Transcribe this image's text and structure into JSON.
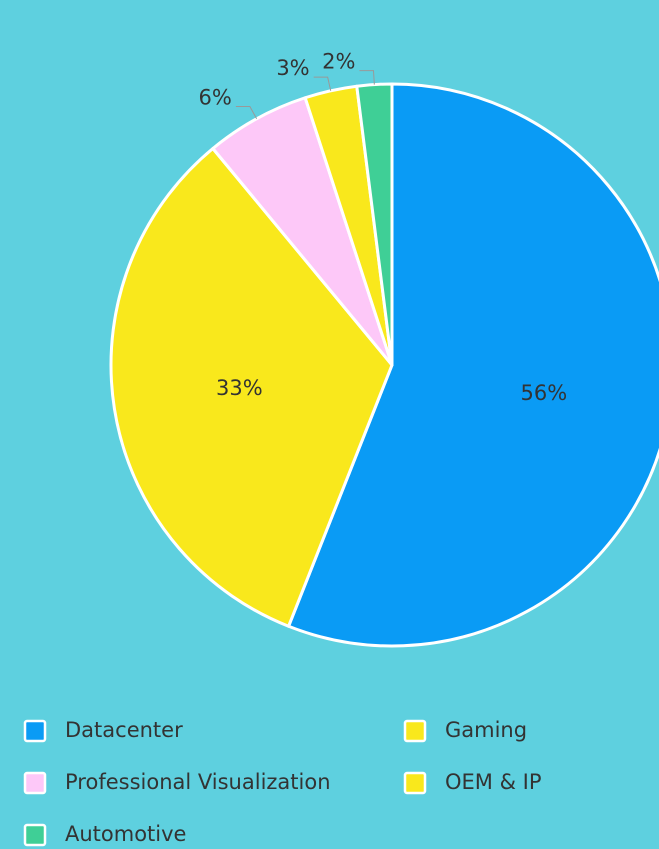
{
  "chart_data": {
    "type": "pie",
    "categories": [
      "Datacenter",
      "Gaming",
      "Professional Visualization",
      "OEM & IP",
      "Automotive"
    ],
    "values": [
      56,
      33,
      6,
      3,
      2
    ],
    "value_labels": [
      "56%",
      "33%",
      "6%",
      "3%",
      "2%"
    ],
    "colors": [
      "#0a9bf5",
      "#f9e81c",
      "#fdc8f8",
      "#f9e81c",
      "#3fcf96"
    ],
    "legend": "bottom"
  }
}
